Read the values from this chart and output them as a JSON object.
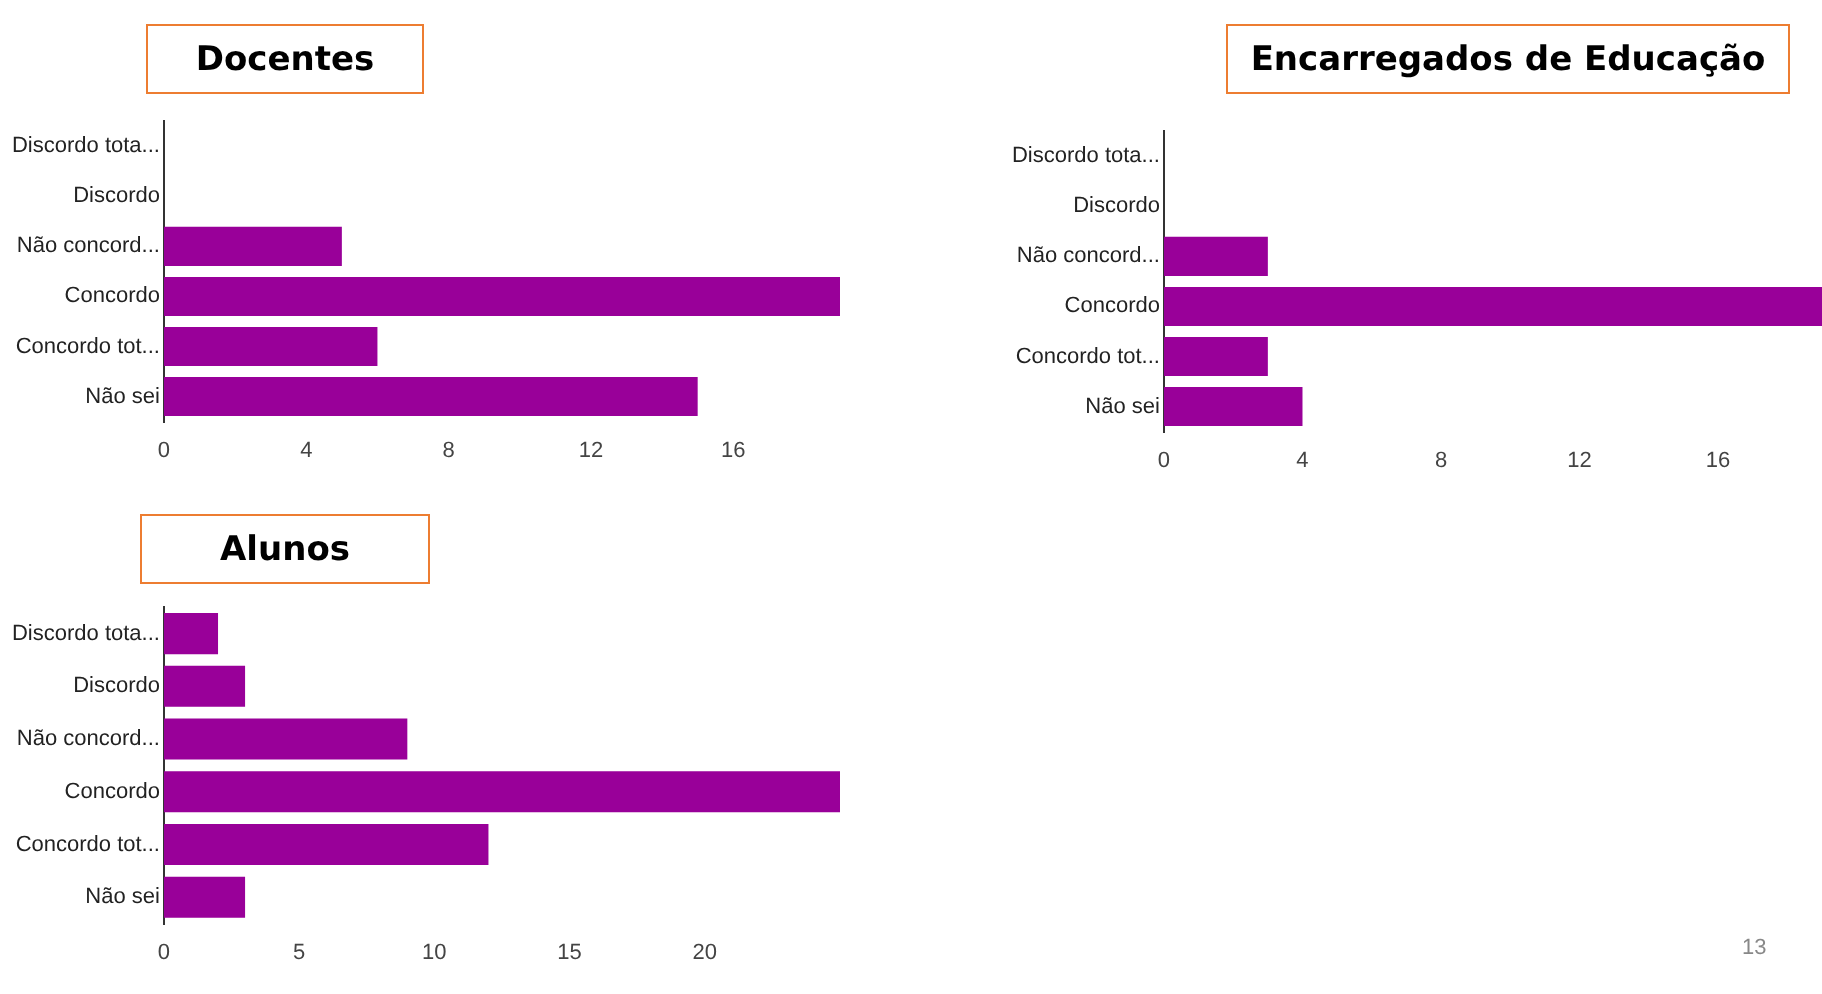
{
  "chart_data": [
    {
      "type": "bar",
      "orientation": "horizontal",
      "title": "Docentes",
      "categories": [
        "Discordo tota...",
        "Discordo",
        "Não concord...",
        "Concordo",
        "Concordo tot...",
        "Não sei"
      ],
      "values": [
        0,
        0,
        5,
        19,
        6,
        15
      ],
      "color": "#990099",
      "xlim": [
        0,
        19
      ],
      "xticks": [
        0,
        4,
        8,
        12,
        16
      ],
      "grid": false,
      "legend": false
    },
    {
      "type": "bar",
      "orientation": "horizontal",
      "title": "Encarregados de Educação",
      "categories": [
        "Discordo tota...",
        "Discordo",
        "Não concord...",
        "Concordo",
        "Concordo tot...",
        "Não sei"
      ],
      "values": [
        0,
        0,
        3,
        19,
        3,
        4
      ],
      "color": "#990099",
      "xlim": [
        0,
        19
      ],
      "xticks": [
        0,
        4,
        8,
        12,
        16
      ],
      "grid": false,
      "legend": false
    },
    {
      "type": "bar",
      "orientation": "horizontal",
      "title": "Alunos",
      "categories": [
        "Discordo tota...",
        "Discordo",
        "Não concord...",
        "Concordo",
        "Concordo tot...",
        "Não sei"
      ],
      "values": [
        2,
        3,
        9,
        25,
        12,
        3
      ],
      "color": "#990099",
      "xlim": [
        0,
        25
      ],
      "xticks": [
        0,
        5,
        10,
        15,
        20
      ],
      "grid": false,
      "legend": false,
      "annotations": [
        "13"
      ]
    }
  ]
}
